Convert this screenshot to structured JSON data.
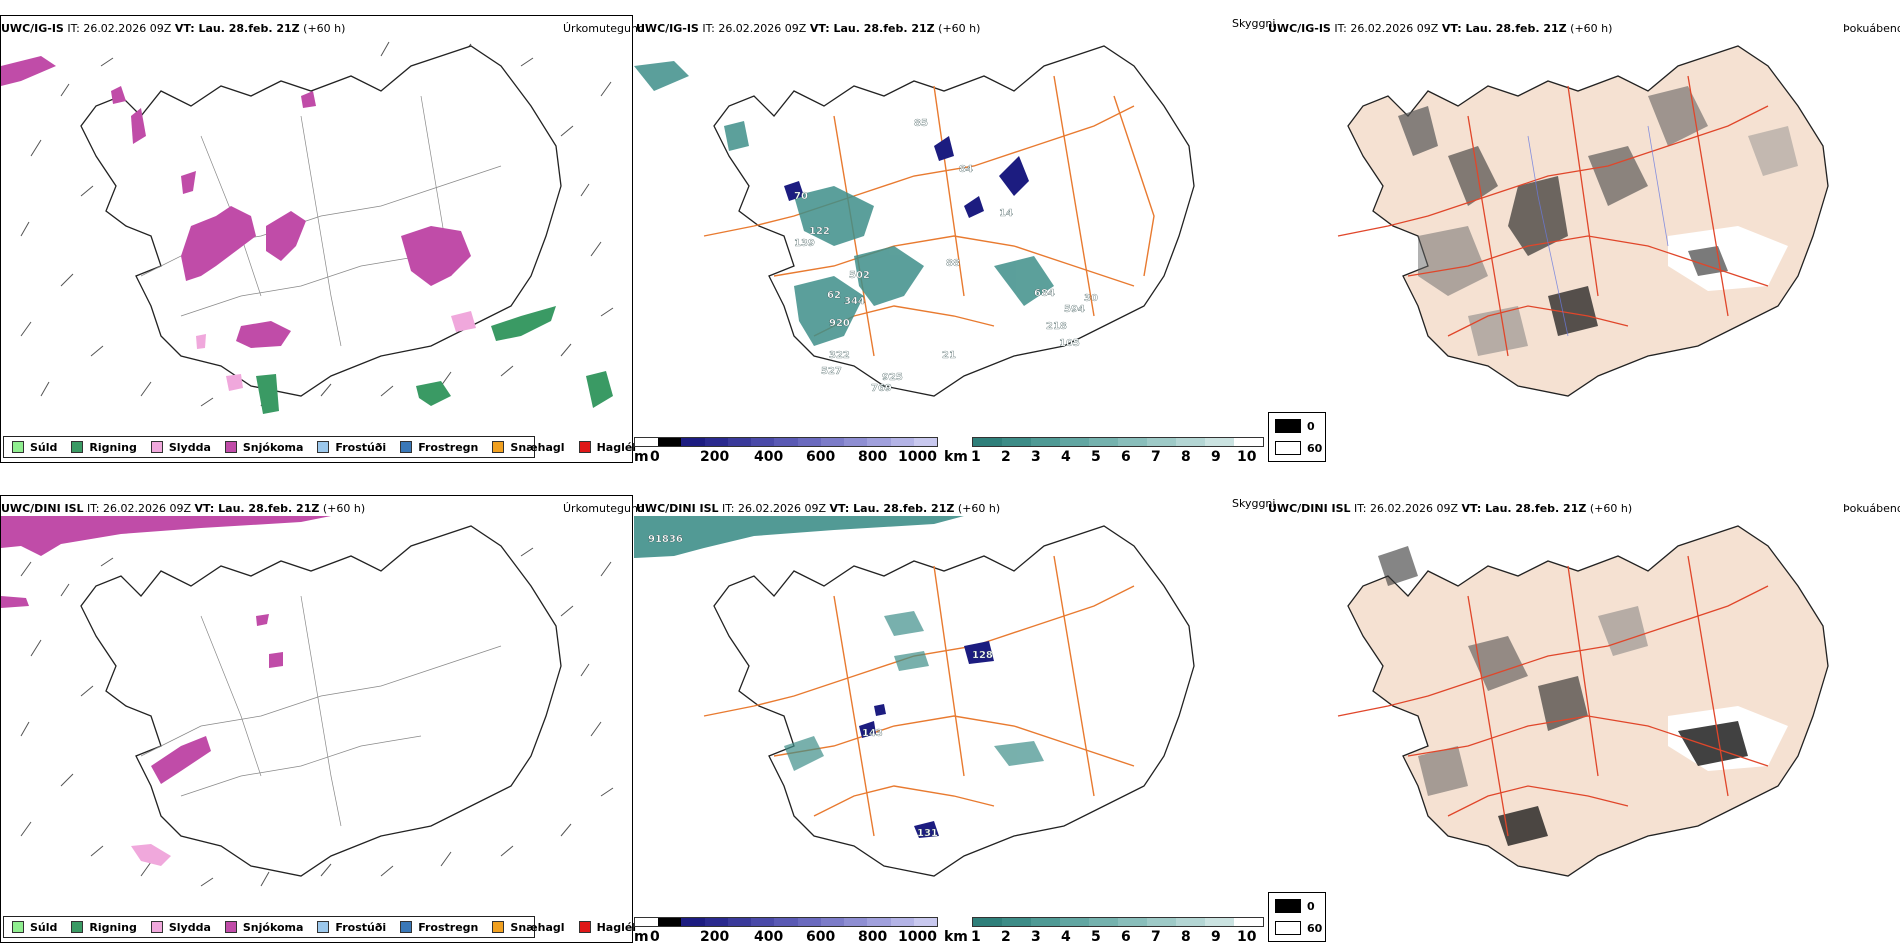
{
  "rows": [
    {
      "model": "UWC/IG-IS",
      "it": "IT: 26.02.2026 09Z",
      "vt": "VT: Lau. 28.feb. 21Z",
      "lead": "(+60 h)",
      "precip_label": "Úrkomutegund",
      "cloud_label": "Skyggni",
      "fog_label": "Þokuábendi",
      "cloud_values": [
        "85",
        "70",
        "122",
        "139",
        "502",
        "88",
        "62",
        "344",
        "920",
        "322",
        "527",
        "925",
        "769",
        "684",
        "594",
        "218",
        "14",
        "84",
        "30",
        "21",
        "105"
      ]
    },
    {
      "model": "UWC/DINI ISL",
      "it": "IT: 26.02.2026 09Z",
      "vt": "VT: Lau. 28.feb. 21Z",
      "lead": "(+60 h)",
      "precip_label": "Úrkomutegund",
      "cloud_label": "Skyggni",
      "fog_label": "Þokuábendi",
      "cloud_values": [
        "91836",
        "128",
        "143",
        "131"
      ]
    }
  ],
  "precip_legend": [
    {
      "label": "Súld",
      "color": "#90ee90"
    },
    {
      "label": "Rigning",
      "color": "#3a9a64"
    },
    {
      "label": "Slydda",
      "color": "#f0a8dc"
    },
    {
      "label": "Snjókoma",
      "color": "#c04ca8"
    },
    {
      "label": "Frostúði",
      "color": "#9cc8ec"
    },
    {
      "label": "Frostregn",
      "color": "#3a78b8"
    },
    {
      "label": "Snæhagl",
      "color": "#f0a020"
    },
    {
      "label": "Haglél",
      "color": "#e01818"
    }
  ],
  "ceiling_colorbar": {
    "unit": "m",
    "ticks": [
      "0",
      "200",
      "400",
      "600",
      "800",
      "1000"
    ]
  },
  "visibility_colorbar": {
    "unit": "km",
    "ticks": [
      "1",
      "2",
      "3",
      "4",
      "5",
      "6",
      "7",
      "8",
      "9",
      "10"
    ]
  },
  "fog_colorbar": {
    "ticks": [
      "0",
      "60"
    ]
  },
  "colors": {
    "land_fog": "#f5e1d2",
    "roads": "#e87a30",
    "roads_fog": "#e0462a",
    "ceiling_low": "#1c1c80",
    "vis_low": "#3f8f8a",
    "rain": "#3a9a64",
    "snow": "#c04ca8"
  }
}
